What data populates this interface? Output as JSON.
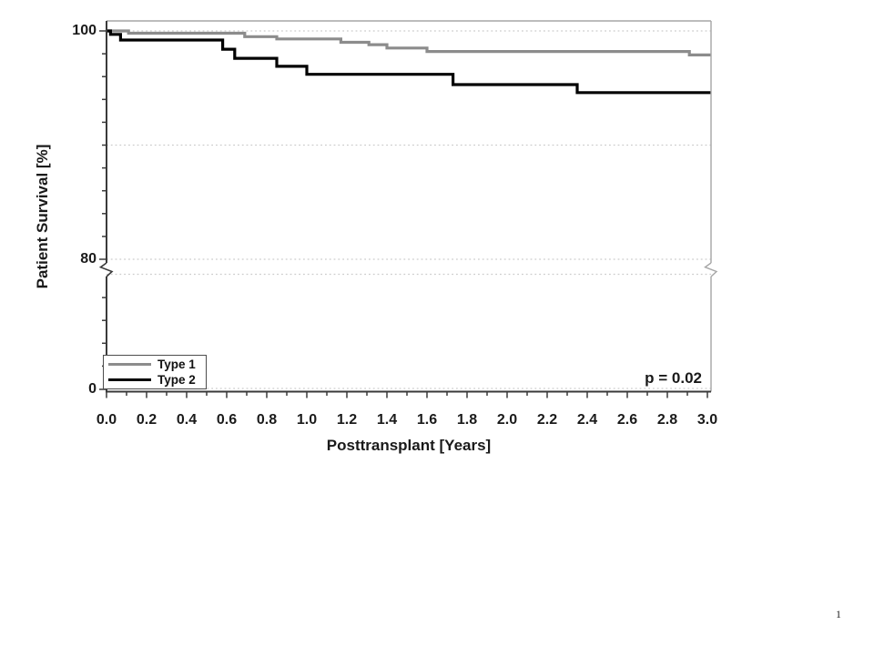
{
  "slide": {
    "page_number": "1"
  },
  "chart_data": {
    "type": "line",
    "subtype": "kaplan-meier-step-survival",
    "title": "",
    "xlabel": "Posttransplant [Years]",
    "ylabel": "Patient Survival [%]",
    "annotation": "p = 0.02",
    "x_ticks": [
      "0.0",
      "0.2",
      "0.4",
      "0.6",
      "0.8",
      "1.0",
      "1.2",
      "1.4",
      "1.6",
      "1.8",
      "2.0",
      "2.2",
      "2.4",
      "2.6",
      "2.8",
      "3.0"
    ],
    "x_minor_interval": 0.1,
    "xlim": [
      0.0,
      3.0
    ],
    "y_tick_labels": [
      "100",
      "80",
      "0"
    ],
    "y_axis_break_below": 80,
    "ylim_displayed": [
      80,
      100
    ],
    "gridlines_pct": [
      100,
      90,
      80
    ],
    "grid_style": "dotted",
    "legend_position": "bottom-left",
    "colors": {
      "grid": "#cccccc",
      "axis": "#3a3a3a",
      "frame": "#a6a6a6",
      "text": "#1a1a1a"
    },
    "series": [
      {
        "name": "Type 1",
        "color": "#8c8c8c",
        "steps_year_pct": [
          [
            0.0,
            100.0
          ],
          [
            0.11,
            99.8
          ],
          [
            0.69,
            99.5
          ],
          [
            0.85,
            99.3
          ],
          [
            1.17,
            99.0
          ],
          [
            1.31,
            98.8
          ],
          [
            1.4,
            98.5
          ],
          [
            1.6,
            98.2
          ],
          [
            2.91,
            97.9
          ]
        ]
      },
      {
        "name": "Type 2",
        "color": "#000000",
        "steps_year_pct": [
          [
            0.0,
            100.0
          ],
          [
            0.02,
            99.7
          ],
          [
            0.07,
            99.2
          ],
          [
            0.58,
            98.4
          ],
          [
            0.64,
            97.6
          ],
          [
            0.85,
            96.9
          ],
          [
            1.0,
            96.2
          ],
          [
            1.73,
            95.3
          ],
          [
            2.35,
            94.6
          ]
        ]
      }
    ]
  }
}
